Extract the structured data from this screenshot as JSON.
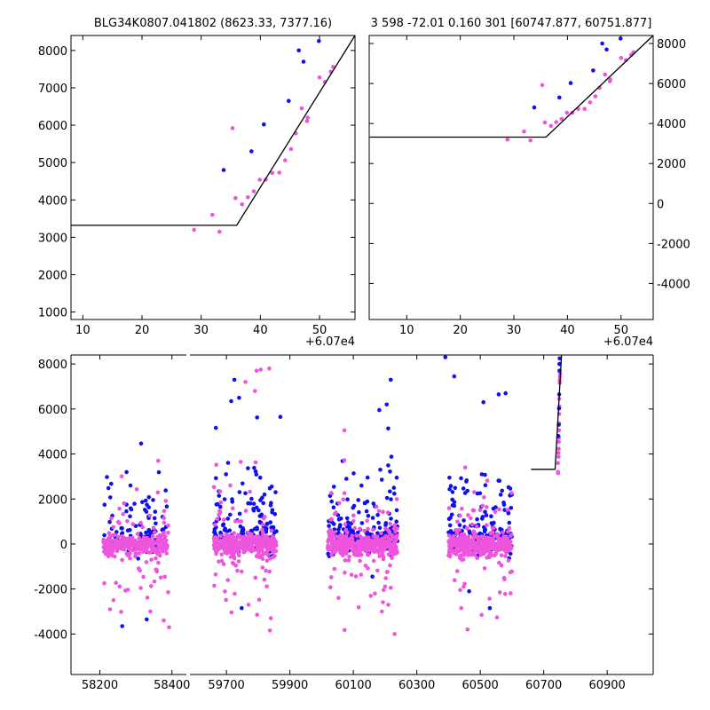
{
  "colors": {
    "blue": "#1010ee",
    "magenta": "#ee55dd",
    "line": "#000000"
  },
  "chart_data": [
    {
      "name": "top-left",
      "type": "scatter",
      "title": "BLG34K0807.041802 (8623.33, 7377.16)",
      "x_offset_label": "+6.07e4",
      "xlim": [
        8,
        56
      ],
      "ylim": [
        800,
        8400
      ],
      "xticks": [
        "10",
        "20",
        "30",
        "40",
        "50"
      ],
      "yticks": [
        "1000",
        "2000",
        "3000",
        "4000",
        "5000",
        "6000",
        "7000",
        "8000"
      ],
      "yaxis": "left",
      "model_line": [
        [
          8,
          3320
        ],
        [
          36,
          3320
        ],
        [
          56,
          8400
        ]
      ],
      "series": [
        {
          "name": "blue",
          "points": [
            [
              33.8,
              4800
            ],
            [
              38.5,
              5300
            ],
            [
              40.6,
              6020
            ],
            [
              44.8,
              6650
            ],
            [
              46.5,
              8000
            ],
            [
              47.3,
              7700
            ],
            [
              49.9,
              8250
            ]
          ]
        },
        {
          "name": "magenta",
          "points": [
            [
              28.8,
              3200
            ],
            [
              31.9,
              3600
            ],
            [
              33.1,
              3150
            ],
            [
              35.3,
              5920
            ],
            [
              35.8,
              4050
            ],
            [
              36.9,
              3880
            ],
            [
              37.9,
              4070
            ],
            [
              38.9,
              4230
            ],
            [
              39.9,
              4540
            ],
            [
              40.9,
              4540
            ],
            [
              42.0,
              4720
            ],
            [
              43.2,
              4730
            ],
            [
              44.2,
              5060
            ],
            [
              45.2,
              5360
            ],
            [
              46.0,
              5780
            ],
            [
              47.0,
              6450
            ],
            [
              47.9,
              6110
            ],
            [
              48.0,
              6200
            ],
            [
              50.0,
              7280
            ],
            [
              50.9,
              7160
            ],
            [
              51.9,
              7430
            ],
            [
              52.3,
              7560
            ]
          ]
        }
      ]
    },
    {
      "name": "top-right",
      "type": "scatter",
      "title": "3 598 -72.01 0.160 301 [60747.877, 60751.877]",
      "x_offset_label": "+6.07e4",
      "xlim": [
        3,
        56
      ],
      "ylim": [
        -5800,
        8400
      ],
      "xticks": [
        "10",
        "20",
        "30",
        "40",
        "50"
      ],
      "yticks": [
        "-4000",
        "-2000",
        "0",
        "2000",
        "4000",
        "6000",
        "8000"
      ],
      "yaxis": "right",
      "model_line": [
        [
          3,
          3320
        ],
        [
          36,
          3320
        ],
        [
          56,
          8400
        ]
      ],
      "series": [
        {
          "name": "blue",
          "points": [
            [
              33.8,
              4800
            ],
            [
              38.5,
              5300
            ],
            [
              40.6,
              6020
            ],
            [
              44.8,
              6650
            ],
            [
              46.5,
              8000
            ],
            [
              47.3,
              7700
            ],
            [
              49.9,
              8250
            ]
          ]
        },
        {
          "name": "magenta",
          "points": [
            [
              28.8,
              3200
            ],
            [
              31.9,
              3600
            ],
            [
              33.1,
              3150
            ],
            [
              35.3,
              5920
            ],
            [
              35.8,
              4050
            ],
            [
              36.9,
              3880
            ],
            [
              37.9,
              4070
            ],
            [
              38.9,
              4230
            ],
            [
              39.9,
              4540
            ],
            [
              40.9,
              4540
            ],
            [
              42.0,
              4720
            ],
            [
              43.2,
              4730
            ],
            [
              44.2,
              5060
            ],
            [
              45.2,
              5360
            ],
            [
              46.0,
              5780
            ],
            [
              47.0,
              6450
            ],
            [
              47.9,
              6110
            ],
            [
              48.0,
              6200
            ],
            [
              50.0,
              7280
            ],
            [
              50.9,
              7160
            ],
            [
              51.9,
              7430
            ],
            [
              52.3,
              7560
            ]
          ]
        }
      ]
    },
    {
      "name": "bottom",
      "type": "scatter",
      "title": "",
      "ylim": [
        -5800,
        8400
      ],
      "yticks": [
        "-4000",
        "-2000",
        "0",
        "2000",
        "4000",
        "6000",
        "8000"
      ],
      "xticks": [
        "58200",
        "58400",
        "59700",
        "59900",
        "60100",
        "60300",
        "60500",
        "60700",
        "60900"
      ],
      "segments": [
        {
          "xlim": [
            58120,
            58440
          ],
          "xticks": [
            "58200",
            "58400"
          ]
        },
        {
          "xlim": [
            59585,
            61045
          ],
          "xticks": [
            "59700",
            "59900",
            "60100",
            "60300",
            "60500",
            "60700",
            "60900"
          ]
        }
      ],
      "seasons": [
        {
          "center": 58300,
          "halfwidth": 90,
          "blue_n": 110,
          "magenta_n": 300
        },
        {
          "center": 59760,
          "halfwidth": 100,
          "blue_n": 170,
          "magenta_n": 360
        },
        {
          "center": 60130,
          "halfwidth": 110,
          "blue_n": 190,
          "magenta_n": 380
        },
        {
          "center": 60500,
          "halfwidth": 100,
          "blue_n": 190,
          "magenta_n": 380
        }
      ],
      "highlight_points": [
        {
          "series": "blue",
          "points": [
            [
              59725,
              7300
            ],
            [
              59715,
              6350
            ],
            [
              58285,
              2600
            ],
            [
              60205,
              6200
            ],
            [
              60182,
              5950
            ],
            [
              60390,
              8300
            ],
            [
              60418,
              7450
            ],
            [
              60510,
              6300
            ],
            [
              60580,
              6700
            ],
            [
              60558,
              6650
            ],
            [
              58330,
              -3350
            ],
            [
              58262,
              -3650
            ],
            [
              59748,
              -2850
            ],
            [
              60160,
              -1450
            ],
            [
              60530,
              -2850
            ],
            [
              60465,
              -2100
            ],
            [
              59870,
              5650
            ],
            [
              60218,
              7300
            ],
            [
              59740,
              6500
            ],
            [
              60185,
              3300
            ]
          ]
        },
        {
          "series": "magenta",
          "points": [
            [
              59795,
              7700
            ],
            [
              59835,
              7800
            ],
            [
              59808,
              7750
            ],
            [
              59760,
              7200
            ],
            [
              59790,
              6800
            ],
            [
              58362,
              3700
            ],
            [
              60072,
              5050
            ],
            [
              59745,
              3650
            ],
            [
              60190,
              -3000
            ],
            [
              60210,
              -2700
            ],
            [
              60230,
              -4000
            ],
            [
              60440,
              -2850
            ],
            [
              60460,
              -3800
            ],
            [
              58392,
              -3700
            ],
            [
              58228,
              -2900
            ],
            [
              58340,
              -3000
            ],
            [
              59770,
              -2700
            ],
            [
              59840,
              -3300
            ],
            [
              58238,
              -2500
            ],
            [
              60168,
              -2200
            ]
          ]
        }
      ],
      "flare": {
        "blue": [
          [
            60746,
            4800
          ],
          [
            60747.4,
            5300
          ],
          [
            60748.2,
            6020
          ],
          [
            60748.8,
            6650
          ],
          [
            60749.4,
            8000
          ],
          [
            60749.6,
            7700
          ],
          [
            60750.2,
            8250
          ]
        ],
        "magenta": [
          [
            60744.5,
            3200
          ],
          [
            60745.2,
            3600
          ],
          [
            60745.4,
            3150
          ],
          [
            60746.2,
            4050
          ],
          [
            60746.6,
            3880
          ],
          [
            60747,
            4230
          ],
          [
            60747.4,
            4540
          ],
          [
            60747.8,
            4720
          ],
          [
            60748.2,
            5060
          ],
          [
            60748.6,
            5360
          ],
          [
            60748.9,
            5780
          ],
          [
            60749.2,
            6450
          ],
          [
            60749.4,
            6110
          ],
          [
            60750,
            7280
          ],
          [
            60750.4,
            7160
          ],
          [
            60750.8,
            7430
          ],
          [
            60751.2,
            7560
          ]
        ]
      },
      "model_line": [
        [
          60660,
          3320
        ],
        [
          60736,
          3320
        ],
        [
          60756,
          8400
        ]
      ]
    }
  ]
}
